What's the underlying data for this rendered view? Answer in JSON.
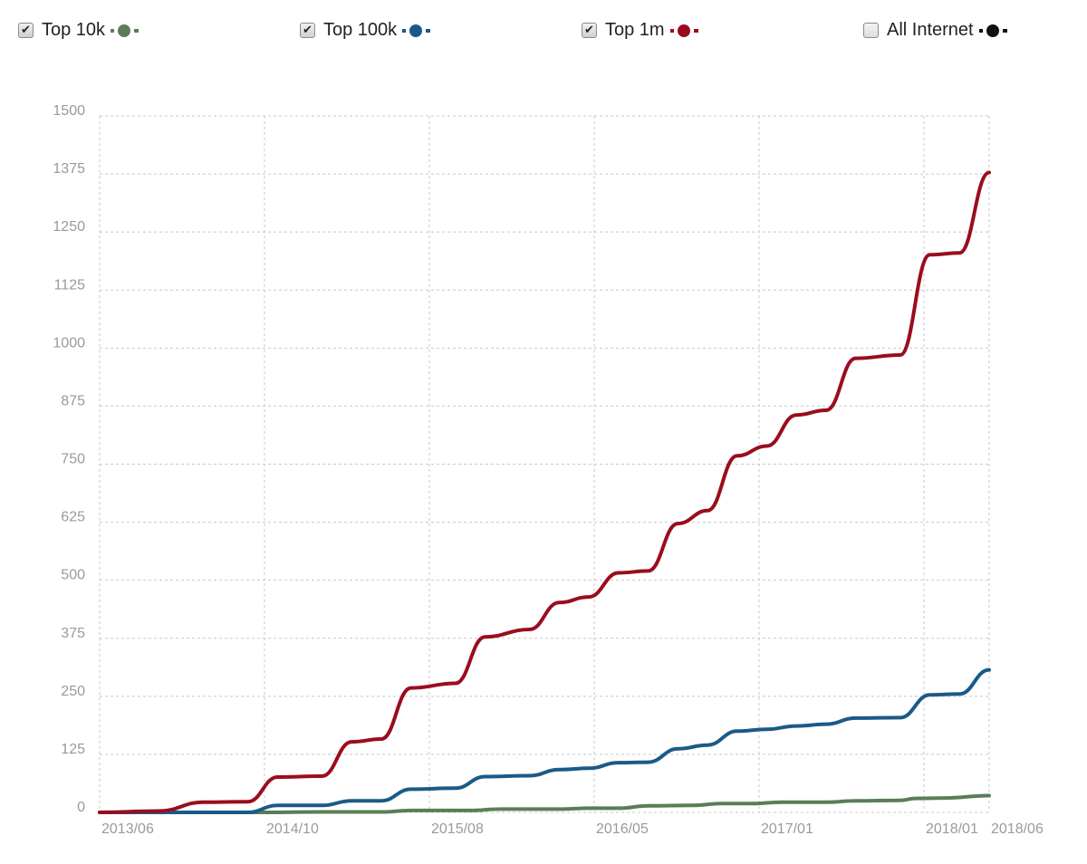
{
  "legend": {
    "items": [
      {
        "label": "Top 10k",
        "checked": true,
        "color": "#5a7d57",
        "checkmark": "✔"
      },
      {
        "label": "Top 100k",
        "checked": true,
        "color": "#1a5a87",
        "checkmark": "✔"
      },
      {
        "label": "Top 1m",
        "checked": true,
        "color": "#9a0d1e",
        "checkmark": "✔"
      },
      {
        "label": "All Internet",
        "checked": false,
        "color": "#111111",
        "checkmark": ""
      }
    ]
  },
  "chart_data": {
    "type": "line",
    "title": "",
    "xlabel": "",
    "ylabel": "",
    "ylim": [
      0,
      1500
    ],
    "xlim": [
      "2013-06",
      "2018-06"
    ],
    "y_ticks": [
      "0",
      "125",
      "250",
      "375",
      "500",
      "625",
      "750",
      "875",
      "1000",
      "1125",
      "1250",
      "1375",
      "1500"
    ],
    "x_ticks": [
      "2013/06",
      "2014/10",
      "2015/08",
      "2016/05",
      "2017/01",
      "2018/01",
      "2018/06"
    ],
    "grid": true,
    "legend_position": "top",
    "series": [
      {
        "name": "Top 10k",
        "color": "#5a7d57",
        "points": [
          [
            "2013-06",
            0
          ],
          [
            "2014-05",
            0
          ],
          [
            "2014-09",
            1
          ],
          [
            "2015-01",
            1
          ],
          [
            "2015-03",
            4
          ],
          [
            "2015-07",
            4
          ],
          [
            "2015-09",
            7
          ],
          [
            "2016-01",
            7
          ],
          [
            "2016-03",
            9
          ],
          [
            "2016-05",
            9
          ],
          [
            "2016-07",
            14
          ],
          [
            "2016-10",
            15
          ],
          [
            "2016-12",
            19
          ],
          [
            "2017-02",
            19
          ],
          [
            "2017-04",
            22
          ],
          [
            "2017-07",
            22
          ],
          [
            "2017-09",
            25
          ],
          [
            "2017-12",
            26
          ],
          [
            "2018-01",
            30
          ],
          [
            "2018-03",
            31
          ],
          [
            "2018-06",
            36
          ]
        ]
      },
      {
        "name": "Top 100k",
        "color": "#1a5a87",
        "points": [
          [
            "2013-06",
            0
          ],
          [
            "2014-04",
            0
          ],
          [
            "2014-06",
            15
          ],
          [
            "2014-09",
            15
          ],
          [
            "2014-11",
            25
          ],
          [
            "2015-01",
            25
          ],
          [
            "2015-03",
            50
          ],
          [
            "2015-06",
            52
          ],
          [
            "2015-08",
            77
          ],
          [
            "2015-11",
            79
          ],
          [
            "2016-01",
            92
          ],
          [
            "2016-03",
            95
          ],
          [
            "2016-05",
            107
          ],
          [
            "2016-07",
            108
          ],
          [
            "2016-09",
            137
          ],
          [
            "2016-11",
            145
          ],
          [
            "2017-01",
            175
          ],
          [
            "2017-03",
            179
          ],
          [
            "2017-05",
            186
          ],
          [
            "2017-07",
            190
          ],
          [
            "2017-09",
            203
          ],
          [
            "2017-12",
            204
          ],
          [
            "2018-02",
            253
          ],
          [
            "2018-04",
            255
          ],
          [
            "2018-06",
            307
          ]
        ]
      },
      {
        "name": "Top 1m",
        "color": "#9a0d1e",
        "points": [
          [
            "2013-06",
            0
          ],
          [
            "2013-10",
            3
          ],
          [
            "2014-01",
            22
          ],
          [
            "2014-04",
            23
          ],
          [
            "2014-06",
            76
          ],
          [
            "2014-09",
            78
          ],
          [
            "2014-11",
            152
          ],
          [
            "2015-01",
            158
          ],
          [
            "2015-03",
            268
          ],
          [
            "2015-06",
            278
          ],
          [
            "2015-08",
            378
          ],
          [
            "2015-11",
            394
          ],
          [
            "2016-01",
            452
          ],
          [
            "2016-03",
            464
          ],
          [
            "2016-05",
            516
          ],
          [
            "2016-07",
            520
          ],
          [
            "2016-09",
            622
          ],
          [
            "2016-11",
            650
          ],
          [
            "2017-01",
            768
          ],
          [
            "2017-03",
            789
          ],
          [
            "2017-05",
            856
          ],
          [
            "2017-07",
            866
          ],
          [
            "2017-09",
            978
          ],
          [
            "2017-12",
            985
          ],
          [
            "2018-02",
            1201
          ],
          [
            "2018-04",
            1205
          ],
          [
            "2018-06",
            1378
          ]
        ]
      }
    ]
  }
}
